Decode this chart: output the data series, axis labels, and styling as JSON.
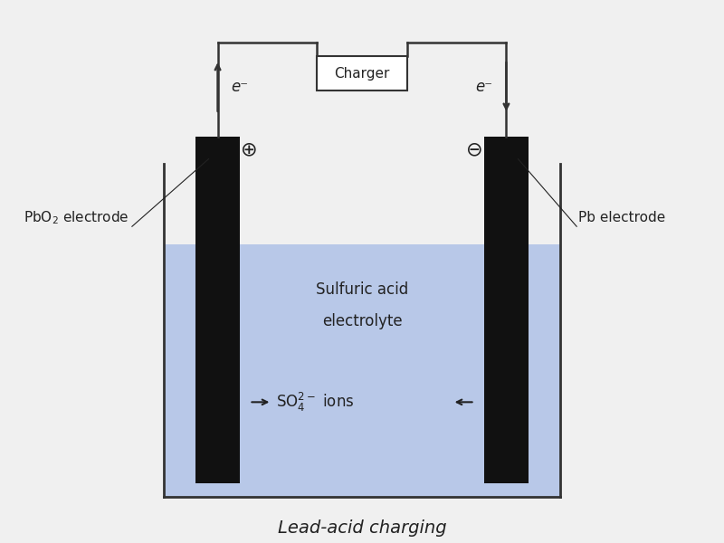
{
  "bg_color": "#f0f0f0",
  "fig_bg": "#f0f0f0",
  "title": "Lead-acid charging",
  "title_fontsize": 14,
  "title_style": "italic",
  "electrode_color": "#111111",
  "tank_outline_color": "#333333",
  "electrolyte_color": "#b8c8e8",
  "charger_box_color": "#ffffff",
  "charger_box_edge": "#333333",
  "wire_color": "#333333",
  "text_color": "#222222",
  "label_pbo2": "PbO₂ electrode",
  "label_pb": "Pb electrode",
  "label_electrolyte_1": "Sulfuric acid",
  "label_electrolyte_2": "electrolyte",
  "label_charger": "Charger",
  "label_so4": "→ SO₄",
  "label_ions": " ions ←",
  "label_so4_superscript": "2-",
  "label_plus": "⊕",
  "label_minus": "⊖",
  "label_e_up": "e⁻",
  "label_e_down": "e⁻"
}
